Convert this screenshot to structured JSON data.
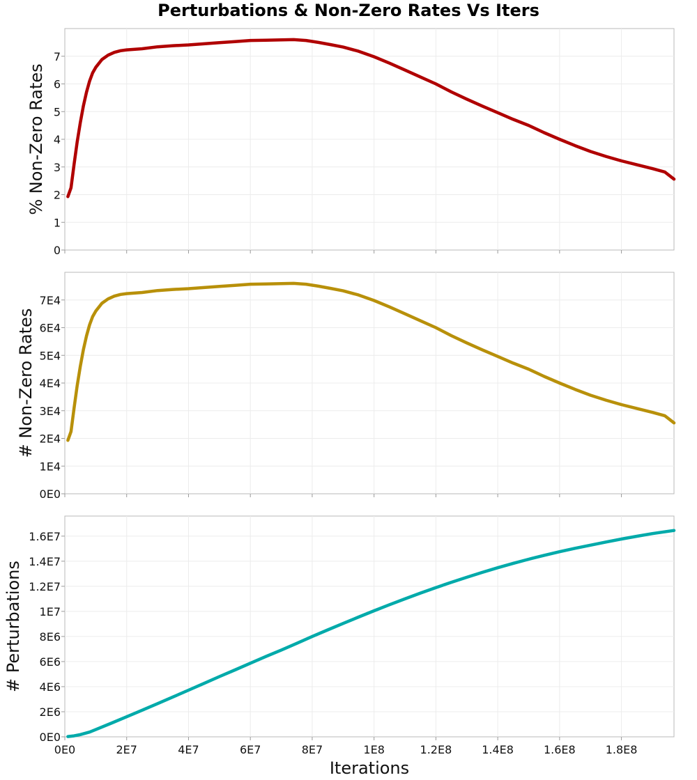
{
  "chart_data": {
    "title": "Perturbations & Non-Zero Rates Vs Iters",
    "xlabel": "Iterations",
    "xlim": [
      0,
      197000000
    ],
    "xticks": [
      0,
      20000000,
      40000000,
      60000000,
      80000000,
      100000000,
      120000000,
      140000000,
      160000000,
      180000000
    ],
    "xtick_labels": [
      "0E0",
      "2E7",
      "4E7",
      "6E7",
      "8E7",
      "1E8",
      "1.2E8",
      "1.4E8",
      "1.6E8",
      "1.8E8"
    ],
    "grid": true,
    "panels": [
      {
        "type": "line",
        "ylabel": "% Non-Zero Rates",
        "ylim": [
          0,
          8
        ],
        "yticks": [
          0,
          1,
          2,
          3,
          4,
          5,
          6,
          7
        ],
        "ytick_labels": [
          "0",
          "1",
          "2",
          "3",
          "4",
          "5",
          "6",
          "7"
        ],
        "color": "#b00000",
        "x": [
          1000000,
          2000000,
          3000000,
          4000000,
          5000000,
          6000000,
          7000000,
          8000000,
          9000000,
          10000000,
          12000000,
          14000000,
          16000000,
          18000000,
          20000000,
          25000000,
          30000000,
          35000000,
          40000000,
          45000000,
          50000000,
          55000000,
          60000000,
          65000000,
          70000000,
          74000000,
          78000000,
          82000000,
          86000000,
          90000000,
          95000000,
          100000000,
          105000000,
          110000000,
          115000000,
          120000000,
          125000000,
          130000000,
          135000000,
          140000000,
          145000000,
          150000000,
          155000000,
          160000000,
          165000000,
          170000000,
          175000000,
          180000000,
          185000000,
          190000000,
          194000000,
          197000000
        ],
        "y": [
          1.93,
          2.25,
          3.1,
          3.9,
          4.6,
          5.2,
          5.7,
          6.1,
          6.4,
          6.6,
          6.88,
          7.04,
          7.14,
          7.2,
          7.23,
          7.27,
          7.34,
          7.38,
          7.41,
          7.45,
          7.49,
          7.53,
          7.57,
          7.58,
          7.59,
          7.6,
          7.57,
          7.5,
          7.42,
          7.33,
          7.18,
          6.98,
          6.75,
          6.5,
          6.25,
          6.0,
          5.71,
          5.45,
          5.2,
          4.96,
          4.72,
          4.5,
          4.24,
          4.0,
          3.77,
          3.56,
          3.38,
          3.22,
          3.08,
          2.94,
          2.82,
          2.56
        ]
      },
      {
        "type": "line",
        "ylabel": "# Non-Zero Rates",
        "ylim": [
          0,
          80000
        ],
        "yticks": [
          0,
          10000,
          20000,
          30000,
          40000,
          50000,
          60000,
          70000
        ],
        "ytick_labels": [
          "0E0",
          "1E4",
          "2E4",
          "3E4",
          "4E4",
          "5E4",
          "6E4",
          "7E4"
        ],
        "color": "#b8900a",
        "x": [
          1000000,
          2000000,
          3000000,
          4000000,
          5000000,
          6000000,
          7000000,
          8000000,
          9000000,
          10000000,
          12000000,
          14000000,
          16000000,
          18000000,
          20000000,
          25000000,
          30000000,
          35000000,
          40000000,
          45000000,
          50000000,
          55000000,
          60000000,
          65000000,
          70000000,
          74000000,
          78000000,
          82000000,
          86000000,
          90000000,
          95000000,
          100000000,
          105000000,
          110000000,
          115000000,
          120000000,
          125000000,
          130000000,
          135000000,
          140000000,
          145000000,
          150000000,
          155000000,
          160000000,
          165000000,
          170000000,
          175000000,
          180000000,
          185000000,
          190000000,
          194000000,
          197000000
        ],
        "y": [
          19300,
          22500,
          31000,
          39000,
          46000,
          52000,
          57000,
          61000,
          64000,
          66000,
          68800,
          70400,
          71400,
          72000,
          72300,
          72700,
          73400,
          73800,
          74100,
          74500,
          74900,
          75300,
          75700,
          75800,
          75900,
          76000,
          75700,
          75000,
          74200,
          73300,
          71800,
          69800,
          67500,
          65000,
          62500,
          60000,
          57100,
          54500,
          52000,
          49600,
          47200,
          45000,
          42400,
          40000,
          37700,
          35600,
          33800,
          32200,
          30800,
          29400,
          28200,
          25600
        ]
      },
      {
        "type": "line",
        "ylabel": "# Perturbations",
        "ylim": [
          0,
          17600000
        ],
        "yticks": [
          0,
          2000000,
          4000000,
          6000000,
          8000000,
          10000000,
          12000000,
          14000000,
          16000000
        ],
        "ytick_labels": [
          "0E0",
          "2E6",
          "4E6",
          "6E6",
          "8E6",
          "1E7",
          "1.2E7",
          "1.4E7",
          "1.6E7"
        ],
        "color": "#00aaaa",
        "x": [
          1000000,
          3000000,
          5000000,
          8000000,
          10000000,
          15000000,
          20000000,
          25000000,
          30000000,
          35000000,
          40000000,
          45000000,
          50000000,
          55000000,
          60000000,
          65000000,
          70000000,
          75000000,
          80000000,
          85000000,
          90000000,
          95000000,
          100000000,
          105000000,
          110000000,
          115000000,
          120000000,
          125000000,
          130000000,
          135000000,
          140000000,
          145000000,
          150000000,
          155000000,
          160000000,
          165000000,
          170000000,
          175000000,
          180000000,
          185000000,
          190000000,
          197000000
        ],
        "y": [
          20000,
          80000,
          180000,
          380000,
          580000,
          1080000,
          1600000,
          2120000,
          2650000,
          3180000,
          3720000,
          4260000,
          4800000,
          5330000,
          5870000,
          6400000,
          6920000,
          7450000,
          8000000,
          8520000,
          9040000,
          9550000,
          10050000,
          10530000,
          11000000,
          11460000,
          11900000,
          12320000,
          12720000,
          13110000,
          13480000,
          13830000,
          14160000,
          14470000,
          14760000,
          15030000,
          15280000,
          15530000,
          15770000,
          15990000,
          16200000,
          16450000
        ]
      }
    ]
  }
}
